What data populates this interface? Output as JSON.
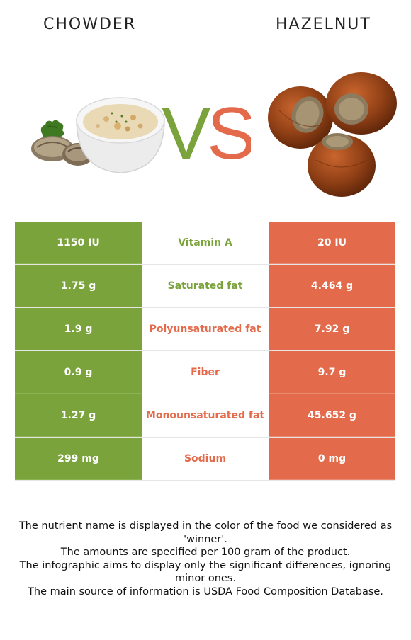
{
  "header": {
    "left_food": "CHOWDER",
    "right_food": "HAZELNUT",
    "vs_left": "V",
    "vs_right": "S"
  },
  "colors": {
    "left": "#7ba33b",
    "right": "#e36b4c"
  },
  "rows": [
    {
      "left": "1150 IU",
      "nutrient": "Vitamin A",
      "right": "20 IU",
      "winner": "left"
    },
    {
      "left": "1.75 g",
      "nutrient": "Saturated fat",
      "right": "4.464 g",
      "winner": "left"
    },
    {
      "left": "1.9 g",
      "nutrient": "Polyunsaturated fat",
      "right": "7.92 g",
      "winner": "right"
    },
    {
      "left": "0.9 g",
      "nutrient": "Fiber",
      "right": "9.7 g",
      "winner": "right"
    },
    {
      "left": "1.27 g",
      "nutrient": "Monounsaturated fat",
      "right": "45.652 g",
      "winner": "right"
    },
    {
      "left": "299 mg",
      "nutrient": "Sodium",
      "right": "0 mg",
      "winner": "right"
    }
  ],
  "footnotes": [
    "The nutrient name is displayed in the color of the food we considered as 'winner'.",
    "The amounts are specified per 100 gram of the product.",
    "The infographic aims to display only the significant differences, ignoring minor ones.",
    "The main source of information is USDA Food Composition Database."
  ]
}
